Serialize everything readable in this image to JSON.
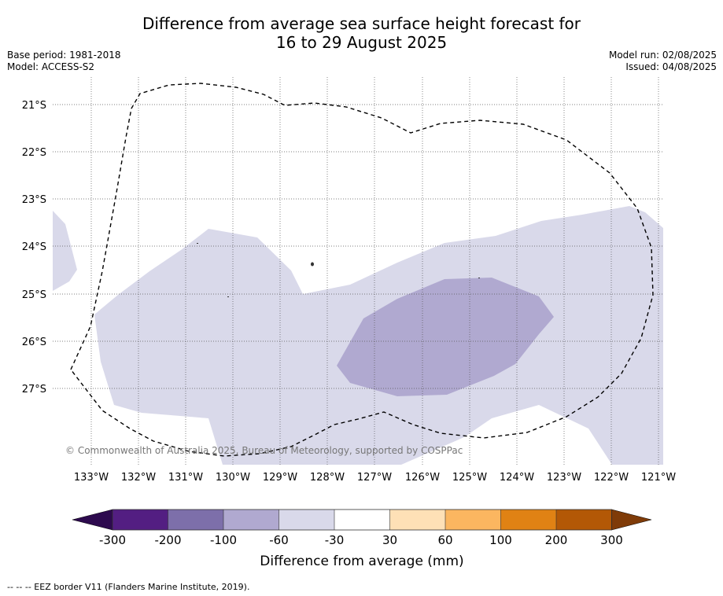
{
  "title": {
    "line1": "Difference from average sea surface height forecast for",
    "line2": "16 to 29 August 2025"
  },
  "meta": {
    "base_period": "Base period: 1981-2018",
    "model": "Model: ACCESS-S2",
    "model_run": "Model run: 02/08/2025",
    "issued": "Issued: 04/08/2025"
  },
  "map": {
    "lon_labels": [
      "133°W",
      "132°W",
      "131°W",
      "130°W",
      "129°W",
      "128°W",
      "127°W",
      "126°W",
      "125°W",
      "124°W",
      "123°W",
      "122°W",
      "121°W"
    ],
    "lat_labels": [
      "21°S",
      "22°S",
      "23°S",
      "24°S",
      "25°S",
      "26°S",
      "27°S"
    ],
    "copyright": "© Commonwealth of Australia 2025, Bureau of Meteorology, supported by COSPPac",
    "region_colors": {
      "minus60_minus30": "#d9d9ea",
      "minus100_minus60": "#b0a9d0"
    },
    "eez_style": "dashed-black"
  },
  "colorbar": {
    "ticks": [
      "-300",
      "-200",
      "-100",
      "-60",
      "-30",
      "30",
      "60",
      "100",
      "200",
      "300"
    ],
    "colors": [
      "#531e82",
      "#7d6faa",
      "#b0a9d0",
      "#d9d9ea",
      "#ffffff",
      "#fee0b6",
      "#fbb660",
      "#e08214",
      "#b35806"
    ],
    "low_extend_color": "#2d0a4e",
    "high_extend_color": "#7f3b08",
    "label": "Difference from average (mm)"
  },
  "footnote": "-- -- -- EEZ border V11 (Flanders Marine Institute, 2019)."
}
